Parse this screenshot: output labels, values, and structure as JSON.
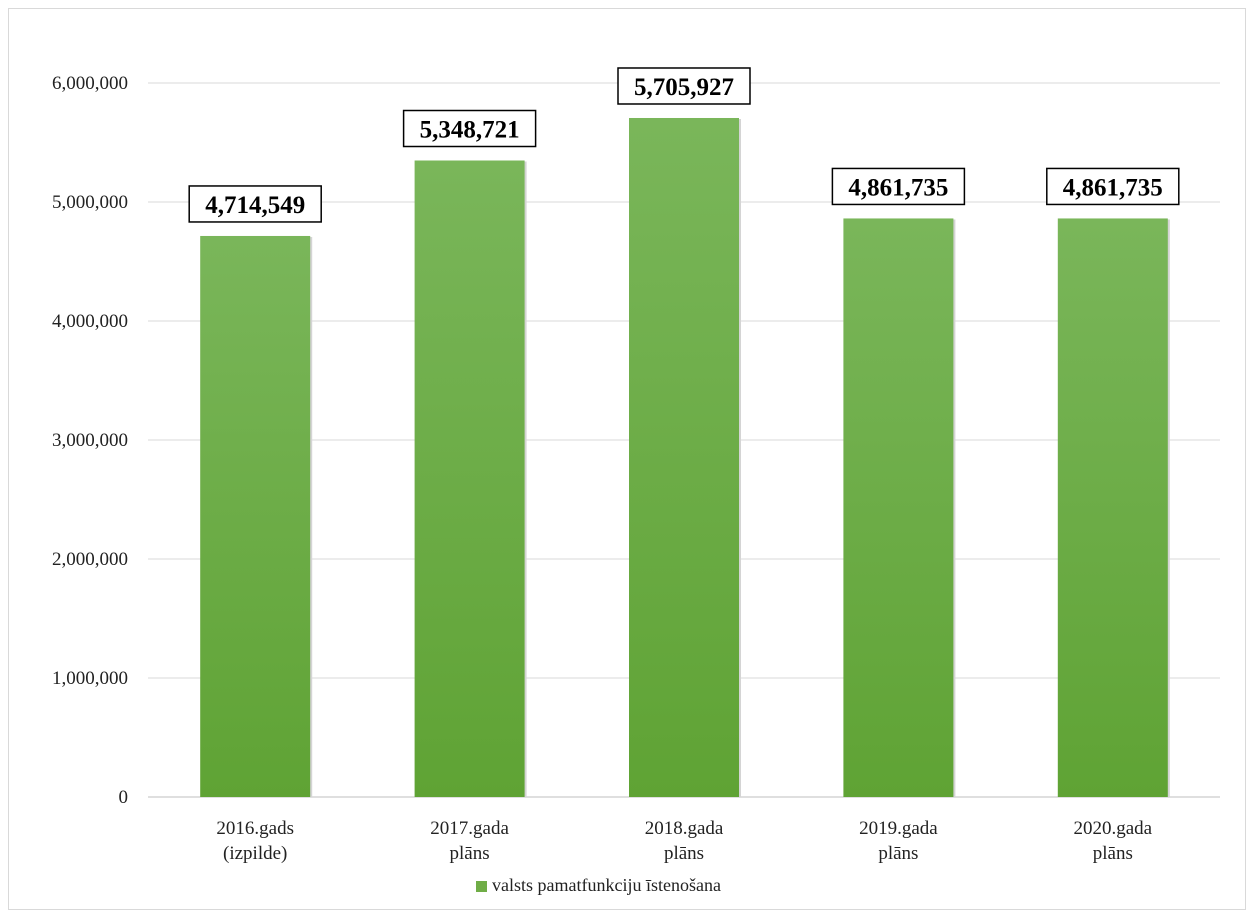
{
  "chart_data": {
    "type": "bar",
    "categories": [
      [
        "2016.gads",
        "(izpilde)"
      ],
      [
        "2017.gada",
        "plāns"
      ],
      [
        "2018.gada",
        "plāns"
      ],
      [
        "2019.gada",
        "plāns"
      ],
      [
        "2020.gada",
        "plāns"
      ]
    ],
    "series": [
      {
        "name": "valsts pamatfunkciju īstenošana",
        "values": [
          4714549,
          5348721,
          5705927,
          4861735,
          4861735
        ],
        "color": "#70ad47"
      }
    ],
    "data_labels": [
      "4,714,549",
      "5,348,721",
      "5,705,927",
      "4,861,735",
      "4,861,735"
    ],
    "yticks": [
      "0",
      "1,000,000",
      "2,000,000",
      "3,000,000",
      "4,000,000",
      "5,000,000",
      "6,000,000"
    ],
    "ylim": [
      0,
      6000000
    ],
    "grid": true,
    "legend_position": "bottom",
    "title": "",
    "xlabel": "",
    "ylabel": ""
  }
}
